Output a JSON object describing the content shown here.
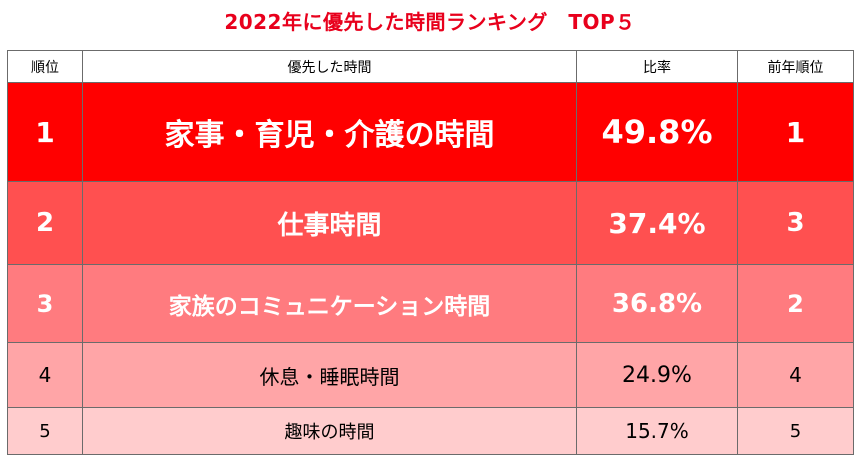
{
  "title": "2022年に優先した時間ランキング　TOP５",
  "headers": {
    "rank": "順位",
    "item": "優先した時間",
    "ratio": "比率",
    "prev_rank": "前年順位"
  },
  "rows": [
    {
      "rank": "1",
      "item": "家事・育児・介護の時間",
      "ratio": "49.8%",
      "prev_rank": "1"
    },
    {
      "rank": "2",
      "item": "仕事時間",
      "ratio": "37.4%",
      "prev_rank": "3"
    },
    {
      "rank": "3",
      "item": "家族のコミュニケーション時間",
      "ratio": "36.8%",
      "prev_rank": "2"
    },
    {
      "rank": "4",
      "item": "休息・睡眠時間",
      "ratio": "24.9%",
      "prev_rank": "4"
    },
    {
      "rank": "5",
      "item": "趣味の時間",
      "ratio": "15.7%",
      "prev_rank": "5"
    }
  ],
  "colors": {
    "title": "#e8001c",
    "row1": "#ff0000",
    "row2": "#ff5050",
    "row3": "#ff7b7f",
    "row4": "#ffa5a7",
    "row5": "#ffcccd"
  }
}
